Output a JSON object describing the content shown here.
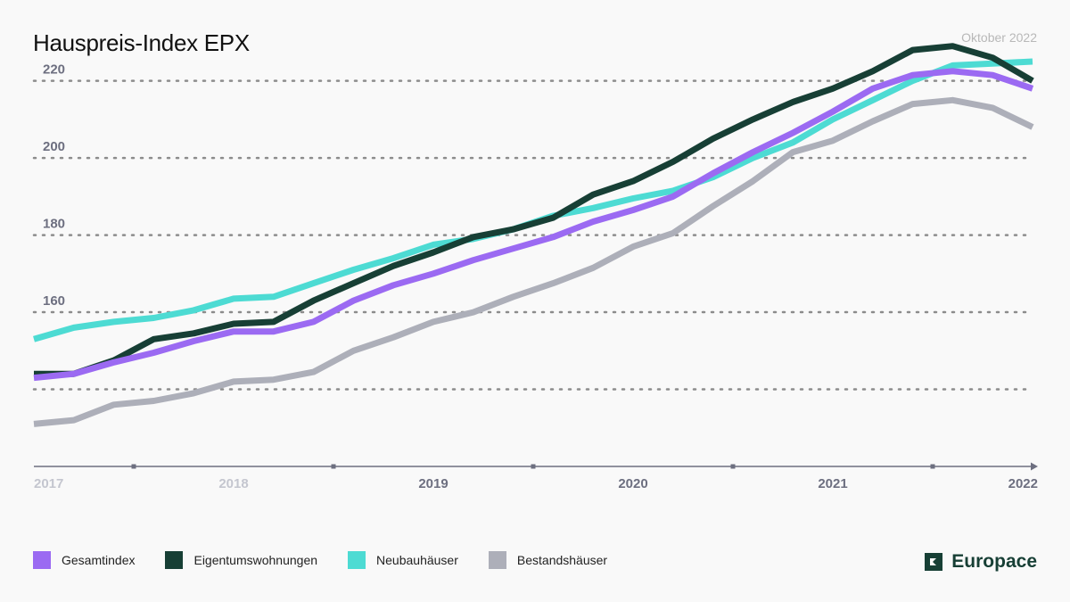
{
  "title": "Hauspreis-Index EPX",
  "date_label": "Oktober 2022",
  "brand": {
    "name": "Europace",
    "icon": "europace-logo-icon",
    "color": "#173f35"
  },
  "colors": {
    "background": "#f9f9f9",
    "grid": "#8c8c8c",
    "axis": "#6d6f80",
    "tick_label_dim": "#c4c6cf",
    "tick_label": "#6d6f80"
  },
  "chart_data": {
    "type": "line",
    "title": "Hauspreis-Index EPX",
    "xlabel": "",
    "ylabel": "",
    "xlim": [
      2017.0,
      2022.0
    ],
    "ylim": [
      120,
      222
    ],
    "y_ticks": [
      140,
      160,
      180,
      200,
      220
    ],
    "y_tick_labels": [
      "",
      "160",
      "180",
      "200",
      "220"
    ],
    "x_ticks": [
      2017,
      2018,
      2019,
      2020,
      2021,
      2022
    ],
    "x_tick_labels": [
      "2017",
      "2018",
      "2019",
      "2020",
      "2021",
      "2022"
    ],
    "x_tick_emphasis": [
      "dim",
      "dim",
      "normal",
      "normal",
      "normal",
      "normal"
    ],
    "grid": "horizontal dotted",
    "legend_position": "bottom",
    "series": [
      {
        "name": "Bestandshäuser",
        "color": "#adafb9",
        "x": [
          2017.0,
          2017.2,
          2017.4,
          2017.6,
          2017.8,
          2018.0,
          2018.2,
          2018.4,
          2018.6,
          2018.8,
          2019.0,
          2019.2,
          2019.4,
          2019.6,
          2019.8,
          2020.0,
          2020.2,
          2020.4,
          2020.6,
          2020.8,
          2021.0,
          2021.2,
          2021.4,
          2021.6,
          2021.8,
          2022.0
        ],
        "y": [
          131,
          132,
          136,
          137,
          139,
          142,
          142.5,
          144.5,
          150,
          153.5,
          157.5,
          160,
          164,
          167.5,
          171.5,
          177,
          180.5,
          187.5,
          194,
          201.5,
          204.5,
          209.5,
          214,
          215,
          213,
          208
        ]
      },
      {
        "name": "Neubauhäuser",
        "color": "#4ddbd3",
        "x": [
          2017.0,
          2017.2,
          2017.4,
          2017.6,
          2017.8,
          2018.0,
          2018.2,
          2018.4,
          2018.6,
          2018.8,
          2019.0,
          2019.2,
          2019.4,
          2019.6,
          2019.8,
          2020.0,
          2020.2,
          2020.4,
          2020.6,
          2020.8,
          2021.0,
          2021.2,
          2021.4,
          2021.6,
          2021.8,
          2022.0
        ],
        "y": [
          153,
          156,
          157.5,
          158.5,
          160.5,
          163.5,
          164,
          167.5,
          171,
          174,
          177.5,
          179,
          181.5,
          185,
          187,
          189.5,
          191.5,
          195,
          200,
          204,
          210,
          215,
          220,
          224,
          224.5,
          225
        ]
      },
      {
        "name": "Eigentumswohnungen",
        "color": "#173f35",
        "x": [
          2017.0,
          2017.2,
          2017.4,
          2017.6,
          2017.8,
          2018.0,
          2018.2,
          2018.4,
          2018.6,
          2018.8,
          2019.0,
          2019.2,
          2019.4,
          2019.6,
          2019.8,
          2020.0,
          2020.2,
          2020.4,
          2020.6,
          2020.8,
          2021.0,
          2021.2,
          2021.4,
          2021.6,
          2021.8,
          2022.0
        ],
        "y": [
          144,
          144,
          147.5,
          153,
          154.5,
          157,
          157.5,
          163,
          167.5,
          172,
          175.5,
          179.5,
          181.5,
          184.5,
          190.5,
          194,
          199,
          205,
          210,
          214.5,
          218,
          222.5,
          228,
          229,
          226,
          220
        ]
      },
      {
        "name": "Gesamtindex",
        "color": "#9b6af2",
        "x": [
          2017.0,
          2017.2,
          2017.4,
          2017.6,
          2017.8,
          2018.0,
          2018.2,
          2018.4,
          2018.6,
          2018.8,
          2019.0,
          2019.2,
          2019.4,
          2019.6,
          2019.8,
          2020.0,
          2020.2,
          2020.4,
          2020.6,
          2020.8,
          2021.0,
          2021.2,
          2021.4,
          2021.6,
          2021.8,
          2022.0
        ],
        "y": [
          143,
          144,
          147,
          149.5,
          152.5,
          155,
          155,
          157.5,
          163,
          167,
          170,
          173.5,
          176.5,
          179.5,
          183.5,
          186.5,
          190,
          196,
          201.5,
          206.5,
          212,
          218,
          221.5,
          222.5,
          221.5,
          218
        ]
      }
    ],
    "legend": [
      {
        "label": "Gesamtindex",
        "color": "#9b6af2"
      },
      {
        "label": "Eigentumswohnungen",
        "color": "#173f35"
      },
      {
        "label": "Neubauhäuser",
        "color": "#4ddbd3"
      },
      {
        "label": "Bestandshäuser",
        "color": "#adafb9"
      }
    ]
  }
}
